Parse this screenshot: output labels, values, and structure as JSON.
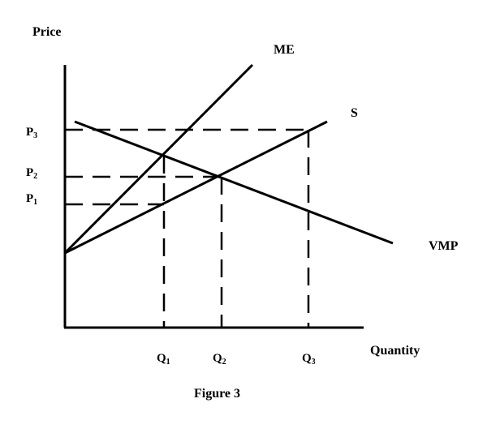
{
  "y_axis_label": "Price",
  "x_axis_label": "Quantity",
  "caption": "Figure 3",
  "curves": {
    "me": "ME",
    "s": "S",
    "vmp": "VMP"
  },
  "price_ticks": [
    {
      "main": "P",
      "sub": "3"
    },
    {
      "main": "P",
      "sub": "2"
    },
    {
      "main": "P",
      "sub": "1"
    }
  ],
  "quantity_ticks": [
    {
      "main": "Q",
      "sub": "1"
    },
    {
      "main": "Q",
      "sub": "2"
    },
    {
      "main": "Q",
      "sub": "3"
    }
  ]
}
